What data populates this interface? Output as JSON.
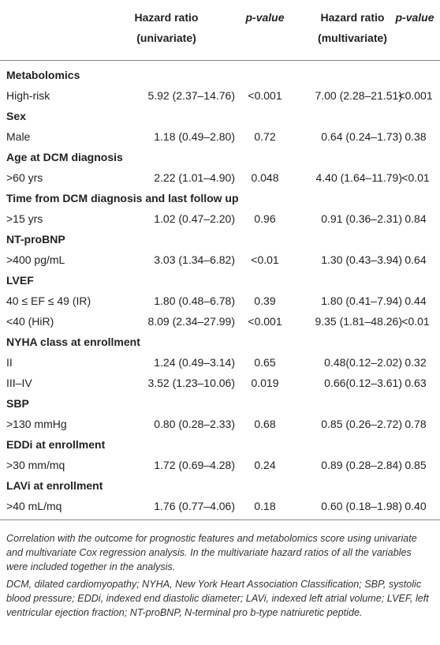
{
  "header": {
    "columns": [
      {
        "lines": [
          "Hazard ratio",
          "(univariate)"
        ]
      },
      {
        "lines": [
          "p-value"
        ]
      },
      {
        "lines": [
          "Hazard ratio",
          "(multivariate)"
        ]
      },
      {
        "lines": [
          "p-value"
        ]
      }
    ]
  },
  "table": {
    "sections": [
      {
        "title": "Metabolomics",
        "rows": [
          [
            "High-risk",
            "5.92 (2.37–14.76)",
            "<0.001",
            "7.00 (2.28–21.51)",
            "<0.001"
          ]
        ]
      },
      {
        "title": "Sex",
        "rows": [
          [
            "Male",
            "1.18 (0.49–2.80)",
            "0.72",
            "0.64 (0.24–1.73)",
            "0.38"
          ]
        ]
      },
      {
        "title": "Age at DCM diagnosis",
        "rows": [
          [
            ">60 yrs",
            "2.22 (1.01–4.90)",
            "0.048",
            "4.40 (1.64–11.79)",
            "<0.01"
          ]
        ]
      },
      {
        "title": "Time from DCM diagnosis and last follow up",
        "rows": [
          [
            ">15 yrs",
            "1.02 (0.47–2.20)",
            "0.96",
            "0.91 (0.36–2.31)",
            "0.84"
          ]
        ]
      },
      {
        "title": "NT-proBNP",
        "rows": [
          [
            ">400 pg/mL",
            "3.03 (1.34–6.82)",
            "<0.01",
            "1.30 (0.43–3.94)",
            "0.64"
          ]
        ]
      },
      {
        "title": "LVEF",
        "rows": [
          [
            "40 ≤ EF ≤ 49 (IR)",
            "1.80 (0.48–6.78)",
            "0.39",
            "1.80 (0.41–7.94)",
            "0.44"
          ],
          [
            "<40 (HiR)",
            "8.09 (2.34–27.99)",
            "<0.001",
            "9.35 (1.81–48.26)",
            "<0.01"
          ]
        ]
      },
      {
        "title": "NYHA class at enrollment",
        "rows": [
          [
            "II",
            "1.24 (0.49–3.14)",
            "0.65",
            "0.48(0.12–2.02)",
            "0.32"
          ],
          [
            "III–IV",
            "3.52 (1.23–10.06)",
            "0.019",
            "0.66(0.12–3.61)",
            "0.63"
          ]
        ]
      },
      {
        "title": "SBP",
        "rows": [
          [
            ">130 mmHg",
            "0.80 (0.28–2.33)",
            "0.68",
            "0.85 (0.26–2.72)",
            "0.78"
          ]
        ]
      },
      {
        "title": "EDDi at enrollment",
        "rows": [
          [
            ">30 mm/mq",
            "1.72 (0.69–4.28)",
            "0.24",
            "0.89 (0.28–2.84)",
            "0.85"
          ]
        ]
      },
      {
        "title": "LAVi at enrollment",
        "rows": [
          [
            ">40 mL/mq",
            "1.76 (0.77–4.06)",
            "0.18",
            "0.60 (0.18–1.98)",
            "0.40"
          ]
        ]
      }
    ]
  },
  "caption": {
    "paragraphs": [
      "Correlation with the outcome for prognostic features and metabolomics score using univariate and multivariate Cox regression analysis. In the multivariate hazard ratios of all the variables were included together in the analysis.",
      "DCM, dilated cardiomyopathy; NYHA, New York Heart Association Classification; SBP, systolic blood pressure; EDDi, indexed end diastolic diameter; LAVi, indexed left atrial volume; LVEF, left ventricular ejection fraction; NT-proBNP, N-terminal pro b-type natriuretic peptide."
    ]
  }
}
